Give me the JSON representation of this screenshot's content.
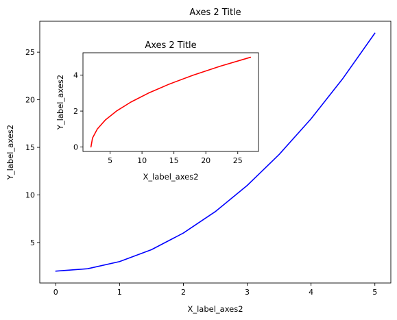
{
  "chart_data": [
    {
      "type": "line",
      "title": "Axes 2 Title",
      "xlabel": "X_label_axes2",
      "ylabel": "Y_label_axes2",
      "xlim": [
        -0.25,
        5.25
      ],
      "ylim": [
        0.75,
        28.25
      ],
      "xticks": [
        0,
        1,
        2,
        3,
        4,
        5
      ],
      "yticks": [
        5,
        10,
        15,
        20,
        25
      ],
      "grid": false,
      "series": [
        {
          "color": "#0000ff",
          "x": [
            0,
            0.5,
            1,
            1.5,
            2,
            2.5,
            3,
            3.5,
            4,
            4.5,
            5
          ],
          "y": [
            2,
            2.25,
            3,
            4.25,
            6,
            8.25,
            11,
            14.25,
            18,
            22.25,
            27
          ]
        }
      ]
    },
    {
      "type": "line",
      "title": "Axes 2 Title",
      "xlabel": "X_label_axes2",
      "ylabel": "Y_label_axes2",
      "xlim": [
        0.75,
        28.25
      ],
      "ylim": [
        -0.25,
        5.25
      ],
      "xticks": [
        5,
        10,
        15,
        20,
        25
      ],
      "yticks": [
        0,
        2,
        4
      ],
      "grid": false,
      "series": [
        {
          "color": "#ff0000",
          "x": [
            2,
            2.25,
            3,
            4.25,
            6,
            8.25,
            11,
            14.25,
            18,
            22.25,
            27
          ],
          "y": [
            0,
            0.5,
            1,
            1.5,
            2,
            2.5,
            3,
            3.5,
            4,
            4.5,
            5
          ]
        }
      ]
    }
  ]
}
